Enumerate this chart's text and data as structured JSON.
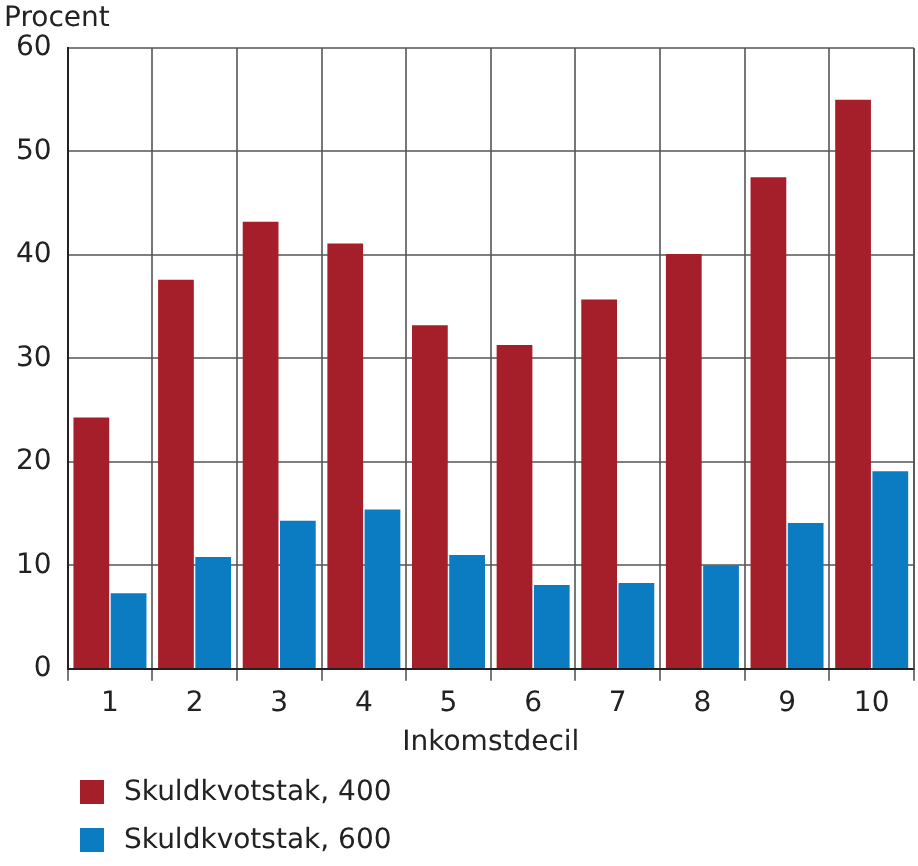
{
  "chart_data": {
    "type": "bar",
    "ylabel": "Procent",
    "xlabel": "Inkomstdecil",
    "categories": [
      "1",
      "2",
      "3",
      "4",
      "5",
      "6",
      "7",
      "8",
      "9",
      "10"
    ],
    "series": [
      {
        "name": "Skuldkvotstak, 400",
        "color": "#a51f2b",
        "values": [
          24.3,
          37.6,
          43.2,
          41.1,
          33.2,
          31.3,
          35.7,
          40.1,
          47.5,
          55
        ]
      },
      {
        "name": "Skuldkvotstak, 600",
        "color": "#0b7cc1",
        "values": [
          7.3,
          10.8,
          14.3,
          15.4,
          11,
          8.1,
          8.3,
          10,
          14.1,
          19.1
        ]
      }
    ],
    "ylim": [
      0,
      60
    ],
    "yticks": [
      0,
      10,
      20,
      30,
      40,
      50,
      60
    ],
    "grid": true,
    "legend": "bottom"
  }
}
